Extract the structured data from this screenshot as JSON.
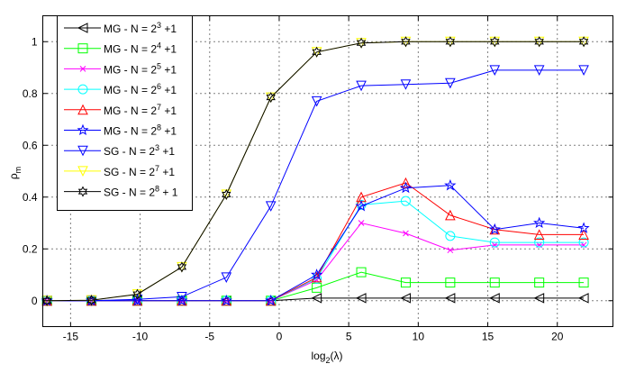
{
  "chart_data": {
    "type": "line",
    "title": "",
    "xlabel": "log",
    "xlabel_sub": "2",
    "xlabel_suffix": "(λ)",
    "ylabel": "ρ",
    "ylabel_sub": "m",
    "xlim": [
      -17,
      24
    ],
    "ylim": [
      -0.1,
      1.1
    ],
    "xticks": [
      -15,
      -10,
      -5,
      0,
      5,
      10,
      15,
      20
    ],
    "yticks": [
      0,
      0.2,
      0.4,
      0.6,
      0.8,
      1
    ],
    "ytick_labels": [
      "0",
      "0.2",
      "0.4",
      "0.6",
      "0.8",
      "1"
    ],
    "grid": true,
    "legend_position": "top-left",
    "x": [
      -16.7,
      -13.5,
      -10.2,
      -7.0,
      -3.8,
      -0.6,
      2.7,
      5.9,
      9.1,
      12.3,
      15.5,
      18.7,
      21.9
    ],
    "series": [
      {
        "name": "MG - N = 2^3 +1",
        "label": "MG - N = 2",
        "exp": "3",
        "tail": " +1",
        "color": "#000000",
        "marker": "triangle-left",
        "values": [
          0,
          0,
          0,
          0,
          0,
          0,
          0.01,
          0.01,
          0.01,
          0.01,
          0.01,
          0.01,
          0.01
        ]
      },
      {
        "name": "MG - N = 2^4 +1",
        "label": "MG - N = 2",
        "exp": "4",
        "tail": " +1",
        "color": "#00ff00",
        "marker": "square",
        "values": [
          0,
          0,
          0,
          0,
          0,
          0,
          0.05,
          0.11,
          0.07,
          0.07,
          0.07,
          0.07,
          0.07
        ]
      },
      {
        "name": "MG - N = 2^5 +1",
        "label": "MG - N = 2",
        "exp": "5",
        "tail": " +1",
        "color": "#ff00ff",
        "marker": "x",
        "values": [
          0,
          0,
          0,
          0,
          0,
          0,
          0.08,
          0.3,
          0.26,
          0.195,
          0.215,
          0.215,
          0.215
        ]
      },
      {
        "name": "MG - N = 2^6 +1",
        "label": "MG - N = 2",
        "exp": "6",
        "tail": " +1",
        "color": "#00ffff",
        "marker": "circle",
        "values": [
          0,
          0,
          0,
          0,
          0,
          0,
          0.085,
          0.37,
          0.385,
          0.25,
          0.225,
          0.225,
          0.225
        ]
      },
      {
        "name": "MG - N = 2^7 +1",
        "label": "MG - N = 2",
        "exp": "7",
        "tail": " +1",
        "color": "#ff0000",
        "marker": "triangle-up",
        "values": [
          0,
          0,
          0,
          0,
          0,
          0,
          0.09,
          0.4,
          0.455,
          0.33,
          0.275,
          0.255,
          0.255
        ]
      },
      {
        "name": "MG - N = 2^8 +1",
        "label": "MG - N = 2",
        "exp": "8",
        "tail": " +1",
        "color": "#0000ff",
        "marker": "pentagram",
        "values": [
          0,
          0,
          0,
          0,
          0,
          0,
          0.1,
          0.365,
          0.435,
          0.445,
          0.275,
          0.3,
          0.28
        ]
      },
      {
        "name": "SG - N = 2^3 +1",
        "label": "SG - N = 2",
        "exp": "3",
        "tail": " +1",
        "color": "#0000ff",
        "marker": "triangle-down",
        "values": [
          0,
          0,
          0.005,
          0.015,
          0.09,
          0.365,
          0.77,
          0.83,
          0.835,
          0.84,
          0.89,
          0.89,
          0.89
        ]
      },
      {
        "name": "SG - N = 2^7 +1",
        "label": "SG - N = 2",
        "exp": "7",
        "tail": " +1",
        "color": "#ffff00",
        "marker": "triangle-down",
        "values": [
          0,
          0.002,
          0.025,
          0.13,
          0.41,
          0.785,
          0.96,
          0.995,
          1,
          1,
          1,
          1,
          1
        ]
      },
      {
        "name": "SG - N = 2^8 + 1",
        "label": "SG - N = 2",
        "exp": "8",
        "tail": " + 1",
        "color": "#000000",
        "marker": "hexagram",
        "values": [
          0,
          0.002,
          0.025,
          0.13,
          0.41,
          0.785,
          0.96,
          0.995,
          1,
          1,
          1,
          1,
          1
        ]
      }
    ]
  }
}
